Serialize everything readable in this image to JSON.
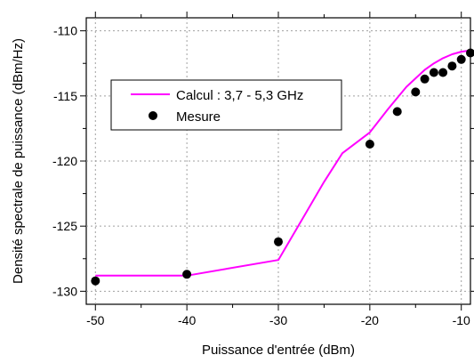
{
  "chart_data": {
    "type": "line",
    "xlabel": "Puissance d'entrée (dBm)",
    "ylabel": "Densité spectrale de puissance (dBm/Hz)",
    "xlim": [
      -51,
      -9
    ],
    "ylim": [
      -131,
      -109
    ],
    "x_ticks": [
      -50,
      -40,
      -30,
      -20,
      -10
    ],
    "x_tick_labels": [
      "-50",
      "-40",
      "-30",
      "-20",
      "-10"
    ],
    "y_ticks": [
      -130,
      -125,
      -120,
      -115,
      -110
    ],
    "y_tick_labels": [
      "-130",
      "-125",
      "-120",
      "-115",
      "-110"
    ],
    "grid": true,
    "legend_position": "upper-left",
    "series": [
      {
        "name": "Calcul : 3,7 - 5,3 GHz",
        "style": "line",
        "color": "#ff00ff",
        "x": [
          -50,
          -40,
          -30,
          -27,
          -25,
          -23,
          -20,
          -18,
          -16,
          -14,
          -13,
          -12,
          -11,
          -10,
          -9
        ],
        "y": [
          -128.8,
          -128.8,
          -127.6,
          -124.0,
          -121.6,
          -119.4,
          -117.8,
          -116.0,
          -114.3,
          -113.0,
          -112.5,
          -112.1,
          -111.8,
          -111.6,
          -111.5
        ]
      },
      {
        "name": "Mesure",
        "style": "scatter",
        "color": "#000000",
        "x": [
          -50,
          -40,
          -30,
          -20,
          -17,
          -15,
          -14,
          -13,
          -12,
          -11,
          -10,
          -9
        ],
        "y": [
          -129.2,
          -128.7,
          -126.2,
          -118.7,
          -116.2,
          -114.7,
          -113.7,
          -113.2,
          -113.2,
          -112.7,
          -112.2,
          -111.7
        ]
      }
    ]
  }
}
